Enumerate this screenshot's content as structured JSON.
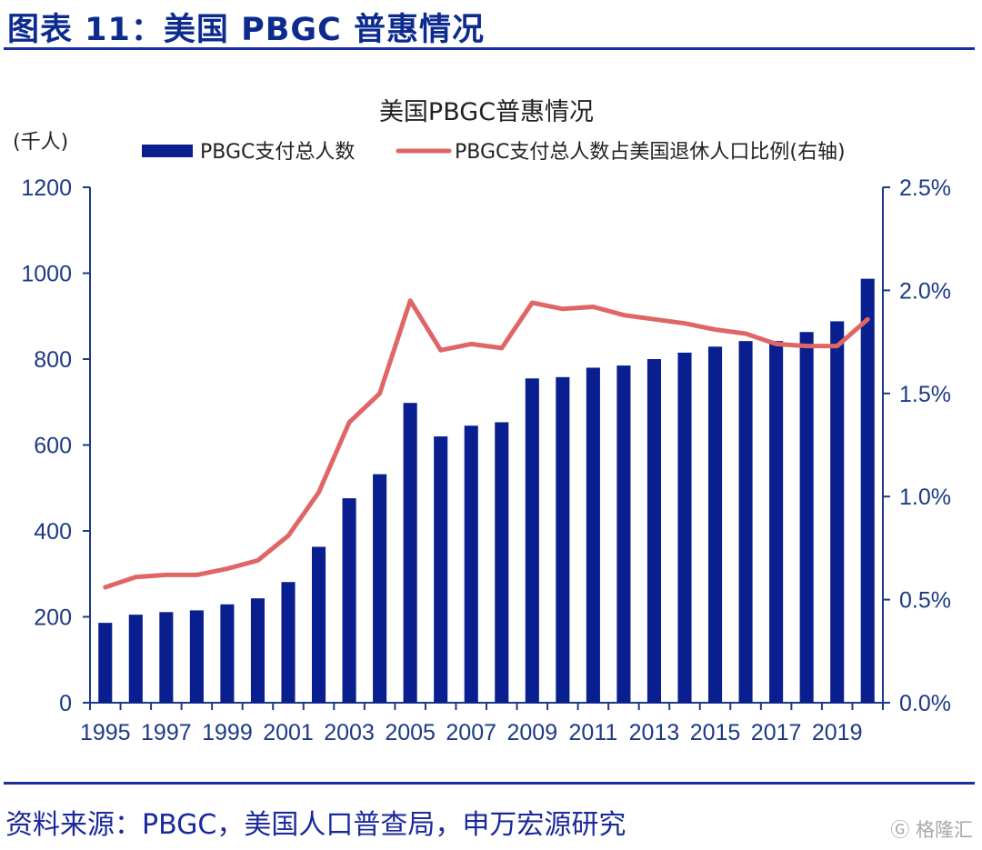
{
  "figure_title": "图表 11：美国 PBGC 普惠情况",
  "source": "资料来源：PBGC，美国人口普查局，申万宏源研究",
  "watermark": "格隆汇",
  "colors": {
    "bar": "#0a1f8f",
    "line": "#e06666",
    "axis": "#1d3a86",
    "rule": "#1a2f9e"
  },
  "chart_data": {
    "type": "bar",
    "title": "美国PBGC普惠情况",
    "left_unit": "(千人)",
    "categories": [
      "1995",
      "1996",
      "1997",
      "1998",
      "1999",
      "2000",
      "2001",
      "2002",
      "2003",
      "2004",
      "2005",
      "2006",
      "2007",
      "2008",
      "2009",
      "2010",
      "2011",
      "2012",
      "2013",
      "2014",
      "2015",
      "2016",
      "2017",
      "2018",
      "2019",
      "2020"
    ],
    "xtick_labels": [
      "1995",
      "1997",
      "1999",
      "2001",
      "2003",
      "2005",
      "2007",
      "2009",
      "2011",
      "2013",
      "2015",
      "2017",
      "2019"
    ],
    "series": [
      {
        "name": "PBGC支付总人数",
        "type": "bar",
        "axis": "left",
        "values": [
          186,
          205,
          211,
          215,
          229,
          243,
          281,
          363,
          476,
          532,
          698,
          620,
          645,
          653,
          755,
          758,
          780,
          785,
          800,
          815,
          829,
          842,
          842,
          863,
          888,
          987
        ]
      },
      {
        "name": "PBGC支付总人数占美国退休人口比例(右轴)",
        "type": "line",
        "axis": "right",
        "values": [
          0.56,
          0.61,
          0.62,
          0.62,
          0.65,
          0.69,
          0.81,
          1.02,
          1.36,
          1.5,
          1.95,
          1.71,
          1.74,
          1.72,
          1.94,
          1.91,
          1.92,
          1.88,
          1.86,
          1.84,
          1.81,
          1.79,
          1.74,
          1.73,
          1.73,
          1.86
        ]
      }
    ],
    "y_left": {
      "min": 0,
      "max": 1200,
      "ticks": [
        "0",
        "200",
        "400",
        "600",
        "800",
        "1000",
        "1200"
      ]
    },
    "y_right": {
      "min": 0,
      "max": 2.5,
      "ticks": [
        "0.0%",
        "0.5%",
        "1.0%",
        "1.5%",
        "2.0%",
        "2.5%"
      ]
    },
    "grid": false,
    "legend_position": "top"
  }
}
